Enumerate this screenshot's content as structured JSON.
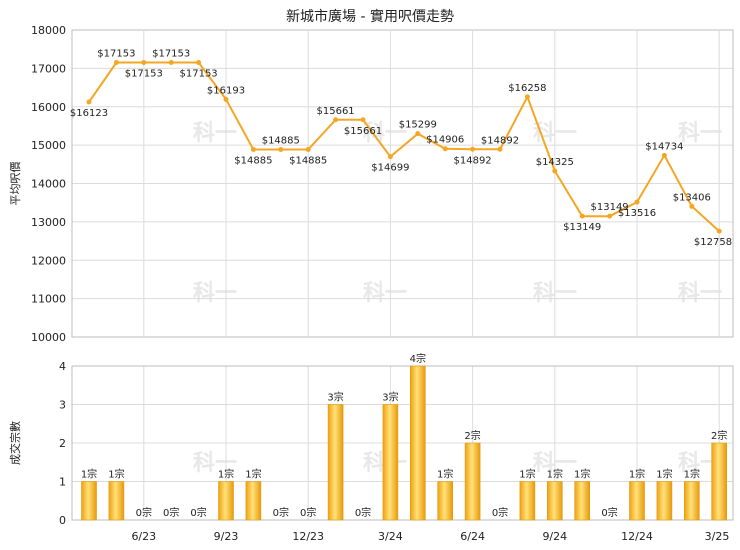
{
  "title": "新城市廣場 - 實用呎價走勢",
  "chart_data": [
    {
      "type": "line",
      "ylabel": "平均呎價",
      "ylim": [
        10000,
        18000
      ],
      "yticks": [
        10000,
        11000,
        12000,
        13000,
        14000,
        15000,
        16000,
        17000,
        18000
      ],
      "values": [
        16123,
        17153,
        17153,
        17153,
        17153,
        16193,
        14885,
        14885,
        14885,
        15661,
        15661,
        14699,
        15299,
        14906,
        14892,
        14892,
        16258,
        14325,
        13149,
        13149,
        13516,
        14734,
        13406,
        12758
      ],
      "data_labels": [
        "$16123",
        "$17153",
        "$17153",
        "$17153",
        "$17153",
        "$16193",
        "$14885",
        "$14885",
        "$14885",
        "$15661",
        "$15661",
        "$14699",
        "$15299",
        "$14906",
        "$14892",
        "$14892",
        "$16258",
        "$14325",
        "$13149",
        "$13149",
        "$13516",
        "$14734",
        "$13406",
        "$12758"
      ],
      "color": "#f5a623"
    },
    {
      "type": "bar",
      "ylabel": "成交宗數",
      "ylim": [
        0,
        4
      ],
      "yticks": [
        0,
        1,
        2,
        3,
        4
      ],
      "x_tick_labels": [
        "6/23",
        "9/23",
        "12/23",
        "3/24",
        "6/24",
        "9/24",
        "12/24",
        "3/25"
      ],
      "values": [
        1,
        1,
        0,
        0,
        0,
        1,
        1,
        0,
        0,
        3,
        0,
        3,
        4,
        1,
        2,
        0,
        1,
        1,
        1,
        0,
        1,
        1,
        1,
        2
      ],
      "data_labels": [
        "1宗",
        "1宗",
        "0宗",
        "0宗",
        "0宗",
        "1宗",
        "1宗",
        "0宗",
        "0宗",
        "3宗",
        "0宗",
        "3宗",
        "4宗",
        "1宗",
        "2宗",
        "0宗",
        "1宗",
        "1宗",
        "1宗",
        "0宗",
        "1宗",
        "1宗",
        "1宗",
        "2宗"
      ],
      "color": "#f5b025"
    }
  ],
  "watermark": "科一"
}
